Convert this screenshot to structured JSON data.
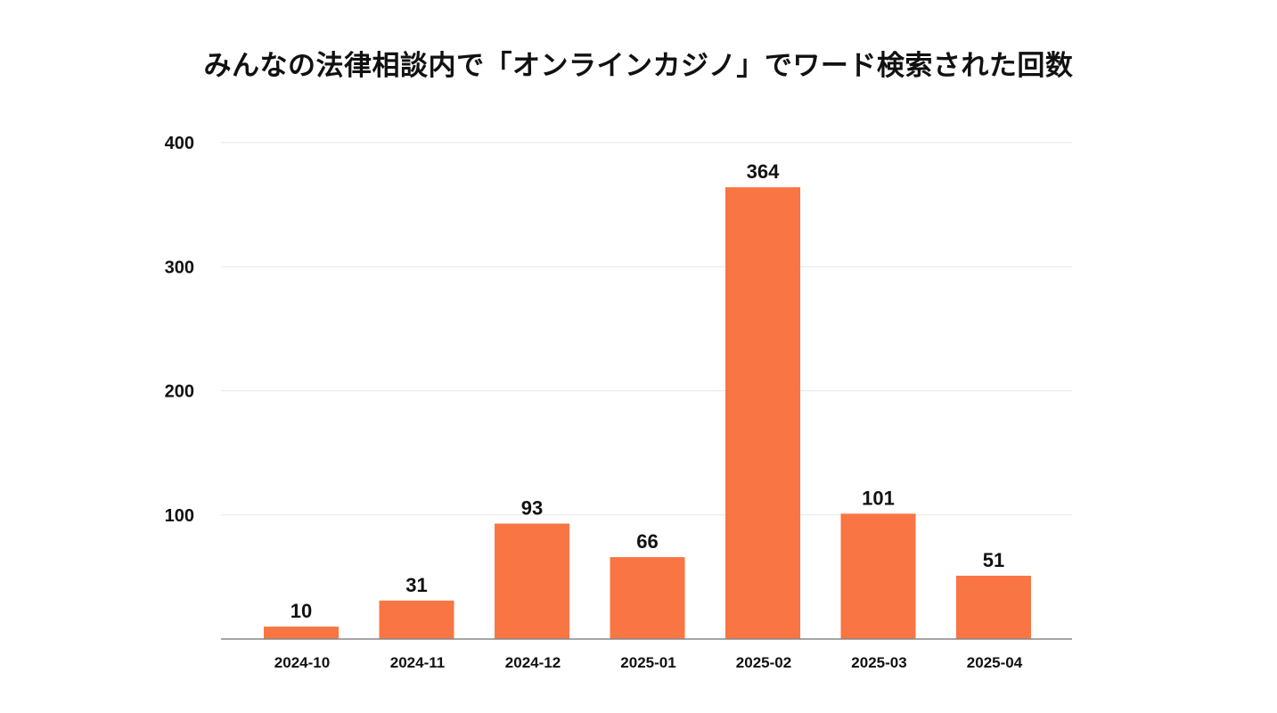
{
  "chart_data": {
    "type": "bar",
    "title": "みんなの法律相談内で「オンラインカジノ」でワード検索された回数",
    "xlabel": "",
    "ylabel": "",
    "categories": [
      "2024-10",
      "2024-11",
      "2024-12",
      "2025-01",
      "2025-02",
      "2025-03",
      "2025-04"
    ],
    "values": [
      10,
      31,
      93,
      66,
      364,
      101,
      51
    ],
    "ylim": [
      0,
      400
    ],
    "yticks": [
      100,
      200,
      300,
      400
    ],
    "grid": true,
    "legend": "none",
    "data_labels": true,
    "colors": {
      "bar": "#F97543",
      "grid": "#e6e6e6",
      "axis": "#888888",
      "text": "#111111"
    }
  }
}
